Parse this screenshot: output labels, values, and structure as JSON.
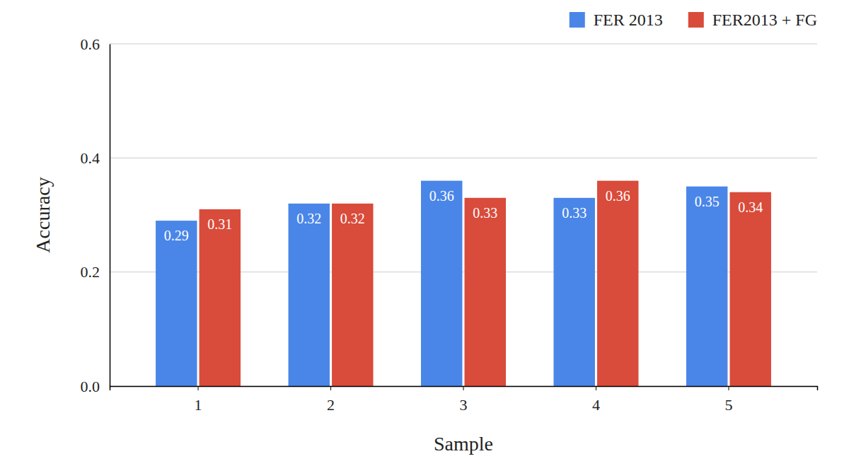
{
  "chart_data": {
    "type": "bar",
    "x_label": "Sample",
    "y_label": "Accuracy",
    "categories": [
      "1",
      "2",
      "3",
      "4",
      "5"
    ],
    "series": [
      {
        "name": "FER 2013",
        "color": "#4a86e8",
        "values": [
          0.29,
          0.32,
          0.36,
          0.33,
          0.35
        ]
      },
      {
        "name": "FER2013 + FG",
        "color": "#d94b3b",
        "values": [
          0.31,
          0.32,
          0.33,
          0.36,
          0.34
        ]
      }
    ],
    "ylim": [
      0,
      0.6
    ],
    "yticks": [
      {
        "value": 0,
        "label": "0.0"
      },
      0.2,
      0.4,
      0.6
    ],
    "grid": true,
    "legend": "top-right",
    "data_labels": true
  }
}
